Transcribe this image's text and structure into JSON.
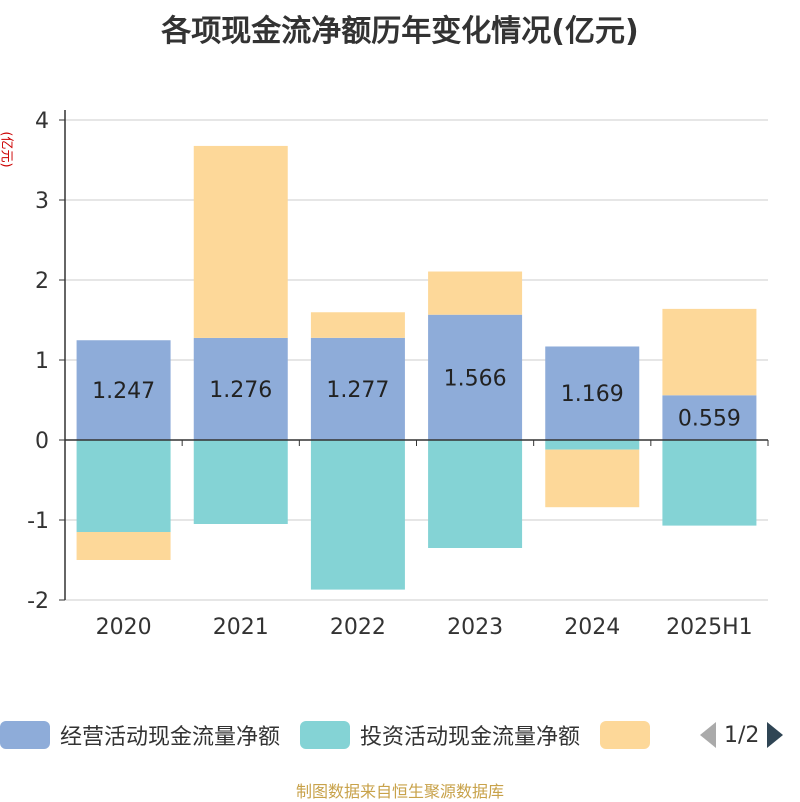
{
  "title": "各项现金流净额历年变化情况(亿元)",
  "y_unit": "(亿元)",
  "source": "制图数据来自恒生聚源数据库",
  "pager": {
    "text": "1/2"
  },
  "colors": {
    "operating": "#8eacd9",
    "investing": "#84d3d5",
    "financing": "#fdd899",
    "grid": "#cccccc",
    "axis": "#333333"
  },
  "chart_data": {
    "type": "bar",
    "stacked": true,
    "categories": [
      "2020",
      "2021",
      "2022",
      "2023",
      "2024",
      "2025H1"
    ],
    "ylim": [
      -2,
      4
    ],
    "yticks": [
      "-2",
      "-1",
      "0",
      "1",
      "2",
      "3",
      "4"
    ],
    "series": [
      {
        "name": "经营活动现金流量净额",
        "values": [
          1.247,
          1.276,
          1.277,
          1.566,
          1.169,
          0.559
        ],
        "labels": [
          "1.247",
          "1.276",
          "1.277",
          "1.566",
          "1.169",
          "0.559"
        ]
      },
      {
        "name": "投资活动现金流量净额",
        "values": [
          -1.15,
          -1.05,
          -1.87,
          -1.35,
          -0.12,
          -1.07
        ]
      },
      {
        "name": "",
        "values": [
          -0.35,
          2.4,
          0.32,
          0.54,
          -0.72,
          1.08
        ]
      }
    ],
    "grid": true,
    "legend_position": "bottom"
  }
}
